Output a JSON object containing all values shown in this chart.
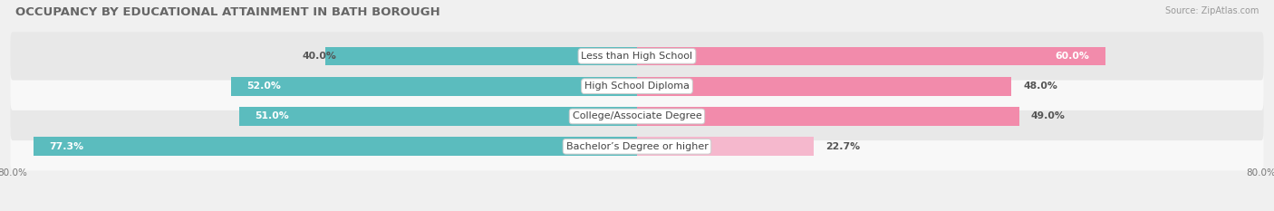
{
  "title": "OCCUPANCY BY EDUCATIONAL ATTAINMENT IN BATH BOROUGH",
  "source": "Source: ZipAtlas.com",
  "categories": [
    "Less than High School",
    "High School Diploma",
    "College/Associate Degree",
    "Bachelor’s Degree or higher"
  ],
  "owner_values": [
    40.0,
    52.0,
    51.0,
    77.3
  ],
  "renter_values": [
    60.0,
    48.0,
    49.0,
    22.7
  ],
  "owner_color": "#5bbcbe",
  "renter_color": "#f28bab",
  "renter_color_light": "#f5b8cd",
  "bar_height": 0.62,
  "background_color": "#f0f0f0",
  "row_bg_light": "#f8f8f8",
  "row_bg_dark": "#e8e8e8",
  "xlim_left": -80,
  "xlim_right": 80,
  "title_fontsize": 9.5,
  "label_fontsize": 8,
  "value_fontsize": 7.8,
  "source_fontsize": 7,
  "legend_fontsize": 8,
  "axis_label_fontsize": 7.5
}
